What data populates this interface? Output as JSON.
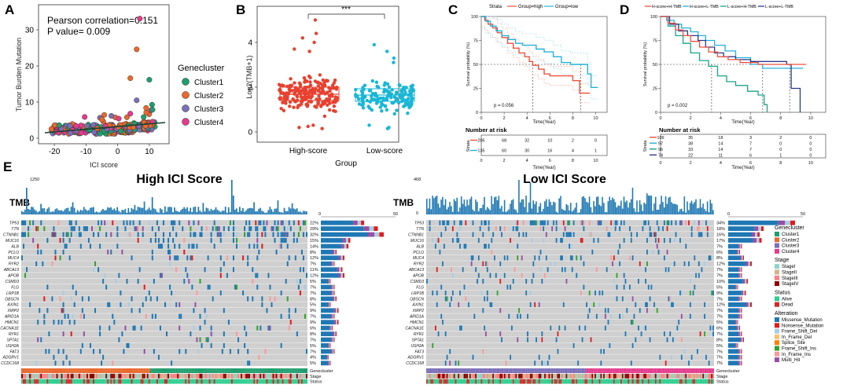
{
  "panel_labels": {
    "A": "A",
    "B": "B",
    "C": "C",
    "D": "D",
    "E": "E"
  },
  "panelA": {
    "stats": {
      "line1": "Pearson correlation=0.151",
      "line2": "P value= 0.009"
    },
    "xlabel": "ICI score",
    "ylabel": "Tumor Burden Mutation",
    "xticks": [
      -20,
      -10,
      0,
      10
    ],
    "yticks": [
      0,
      10,
      20,
      30
    ],
    "legend_title": "Genecluster",
    "clusters": [
      {
        "name": "Cluster1",
        "color": "#1f9e6e"
      },
      {
        "name": "Cluster2",
        "color": "#e8692e"
      },
      {
        "name": "Cluster3",
        "color": "#7b6fb8"
      },
      {
        "name": "Cluster4",
        "color": "#e23c8d"
      }
    ]
  },
  "panelB": {
    "sig": "***",
    "ylabel": "Log2(TMB+1)",
    "xlabel": "Group",
    "yticks": [
      0,
      2,
      4
    ],
    "groups": [
      {
        "name": "High-score",
        "color": "#e8412f"
      },
      {
        "name": "Low-score",
        "color": "#19b6d6"
      }
    ]
  },
  "panelC": {
    "legend_title": "Strata",
    "legend": [
      {
        "name": "Group=high",
        "color": "#f0503c"
      },
      {
        "name": "Group=low",
        "color": "#22b2d8"
      }
    ],
    "ylabel": "Survival probability (%)",
    "xlabel": "Time(Year)",
    "yticks": [
      0,
      25,
      50,
      75,
      100
    ],
    "xticks": [
      0,
      2,
      4,
      6,
      8,
      10
    ],
    "pvalue": "p = 0.056",
    "risk_title": "Number at risk",
    "risk_ylabel": "Strata",
    "risk_xlabel": "Time(Year)",
    "risk_rows": [
      {
        "color": "#f0503c",
        "values": [
          "205",
          "68",
          "32",
          "10",
          "2",
          "0"
        ]
      },
      {
        "color": "#22b2d8",
        "values": [
          "135",
          "60",
          "30",
          "16",
          "4",
          "1"
        ]
      }
    ]
  },
  "panelD": {
    "legend": [
      {
        "name": "H-score+H-TMB",
        "color": "#f0503c"
      },
      {
        "name": "H-score+L-TMB",
        "color": "#22b2d8"
      },
      {
        "name": "L-score+H-TMB",
        "color": "#17a68a"
      },
      {
        "name": "L-score+L-TMB",
        "color": "#2c3a8a"
      }
    ],
    "ylabel": "Survival probability (%)",
    "xlabel": "Time(Year)",
    "yticks": [
      0,
      25,
      50,
      75,
      100
    ],
    "xticks": [
      0,
      2,
      4,
      6,
      8,
      10
    ],
    "pvalue": "p = 0.002",
    "risk_title": "Number at risk",
    "risk_ylabel": "Strata",
    "risk_xlabel": "Time(Year)",
    "risk_rows": [
      {
        "color": "#f0503c",
        "values": [
          "109",
          "35",
          "18",
          "3",
          "2",
          "0"
        ]
      },
      {
        "color": "#22b2d8",
        "values": [
          "97",
          "38",
          "14",
          "7",
          "0",
          "0"
        ]
      },
      {
        "color": "#17a68a",
        "values": [
          "96",
          "33",
          "14",
          "7",
          "0",
          "0"
        ]
      },
      {
        "color": "#2c3a8a",
        "values": [
          "74",
          "22",
          "11",
          "6",
          "1",
          "0"
        ]
      }
    ]
  },
  "panelE": {
    "tmb_label": "TMB",
    "high": {
      "title": "High ICI Score",
      "tmb_ymax": "1250",
      "tmb_ymin": "0",
      "bar_axis": [
        "0",
        "50"
      ],
      "genes": [
        "TP53",
        "TTN",
        "CTNNB1",
        "MUC16",
        "ALB",
        "PCLO",
        "MUC4",
        "RYR2",
        "ABCA13",
        "APOB",
        "CSMD3",
        "FLG",
        "LRP1B",
        "OBSCN",
        "AXIN1",
        "XIRP2",
        "ARID1A",
        "HMCN1",
        "CACNA1E",
        "RYR1",
        "SPTA1",
        "USH2A",
        "FAT3",
        "ADGRV1",
        "CCDC168"
      ],
      "pcts": [
        "22%",
        "29%",
        "32%",
        "15%",
        "14%",
        "8%",
        "12%",
        "7%",
        "11%",
        "12%",
        "5%",
        "7%",
        "7%",
        "8%",
        "5%",
        "9%",
        "7%",
        "9%",
        "6%",
        "8%",
        "7%",
        "5%",
        "7%",
        "4%",
        "5%"
      ]
    },
    "low": {
      "title": "Low ICI Score",
      "tmb_ymax": "468",
      "tmb_ymin": "0",
      "bar_axis": [
        "0",
        "50"
      ],
      "genes": [
        "TP53",
        "TTN",
        "CTNNB1",
        "MUC16",
        "ALB",
        "PCLO",
        "MUC4",
        "RYR2",
        "ABCA13",
        "APOB",
        "CSMD3",
        "FLG",
        "LRP1B",
        "OBSCN",
        "AXIN1",
        "XIRP2",
        "ARID1A",
        "HMCN1",
        "CACNA1E",
        "RYR1",
        "SPTA1",
        "USH2A",
        "FAT3",
        "ADGRV1",
        "CCDC168"
      ],
      "pcts": [
        "34%",
        "18%",
        "16%",
        "17%",
        "7%",
        "6%",
        "8%",
        "12%",
        "7%",
        "7%",
        "10%",
        "5%",
        "9%",
        "7%",
        "12%",
        "7%",
        "7%",
        "5%",
        "6%",
        "7%",
        "8%",
        "5%",
        "7%",
        "7%",
        "7%"
      ]
    },
    "track_labels": [
      "Genecluster",
      "Stage",
      "Status"
    ],
    "legend": {
      "genecluster_title": "Genecluster",
      "genecluster": [
        {
          "name": "Cluster1",
          "color": "#1f9e6e"
        },
        {
          "name": "Cluster2",
          "color": "#e8692e"
        },
        {
          "name": "Cluster3",
          "color": "#7b6fb8"
        },
        {
          "name": "Cluster4",
          "color": "#e23c8d"
        }
      ],
      "stage_title": "Stage",
      "stage": [
        {
          "name": "StageI",
          "color": "#8dd3c7"
        },
        {
          "name": "StageII",
          "color": "#d2b48c"
        },
        {
          "name": "StageIII",
          "color": "#ff8080"
        },
        {
          "name": "StageIV",
          "color": "#8b0000"
        }
      ],
      "status_title": "Status",
      "status": [
        {
          "name": "Alive",
          "color": "#2fce8f"
        },
        {
          "name": "Dead",
          "color": "#d62728"
        }
      ],
      "alteration_title": "Alteration",
      "alteration": [
        {
          "name": "Missense_Mutation",
          "color": "#1f78b4"
        },
        {
          "name": "Nonsense_Mutation",
          "color": "#e41a1c"
        },
        {
          "name": "Frame_Shift_Del",
          "color": "#a6cee3"
        },
        {
          "name": "In_Frame_Del",
          "color": "#fdbf6f"
        },
        {
          "name": "Splice_Site",
          "color": "#ff7f00"
        },
        {
          "name": "Frame_Shift_Ins",
          "color": "#33a02c"
        },
        {
          "name": "In_Frame_Ins",
          "color": "#fb9a99"
        },
        {
          "name": "Multi_Hit",
          "color": "#984ea3"
        }
      ]
    }
  }
}
